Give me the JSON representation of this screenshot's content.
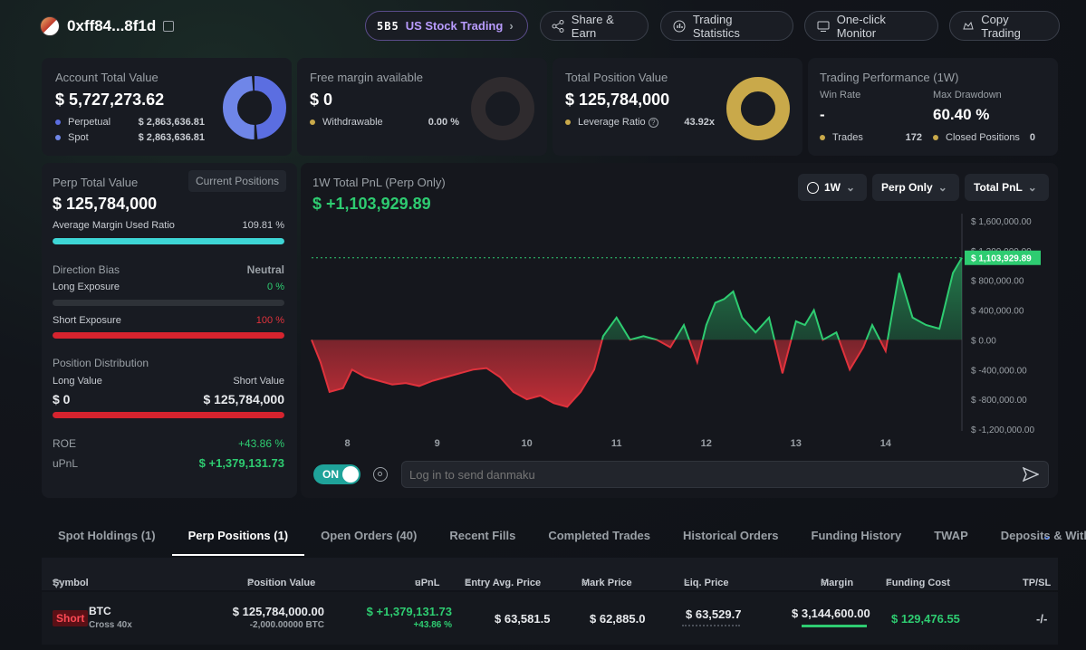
{
  "header": {
    "address": "0xff84...8f1d",
    "buttons": [
      "US Stock Trading",
      "Share & Earn",
      "Trading Statistics",
      "One-click Monitor",
      "Copy Trading"
    ],
    "us_logo": "5B5"
  },
  "account": {
    "label": "Account Total Value",
    "value": "$ 5,727,273.62",
    "perpetual_label": "Perpetual",
    "perpetual_value": "$ 2,863,636.81",
    "spot_label": "Spot",
    "spot_value": "$ 2,863,636.81",
    "colors": {
      "perpetual": "#5b6ee1",
      "spot": "#6f86e8"
    }
  },
  "free_margin": {
    "label": "Free margin available",
    "value": "$ 0",
    "withdrawable_label": "Withdrawable",
    "withdrawable_value": "0.00 %"
  },
  "total_position": {
    "label": "Total Position Value",
    "value": "$ 125,784,000",
    "leverage_label": "Leverage Ratio",
    "leverage_value": "43.92x"
  },
  "performance": {
    "label": "Trading Performance (1W)",
    "win_rate_label": "Win Rate",
    "win_rate_value": "-",
    "max_drawdown_label": "Max Drawdown",
    "max_drawdown_value": "60.40 %",
    "trades_label": "Trades",
    "trades_value": "172",
    "closed_label": "Closed Positions",
    "closed_value": "0"
  },
  "perp": {
    "total_label": "Perp Total Value",
    "current_positions": "Current Positions",
    "total_value": "$ 125,784,000",
    "margin_label": "Average Margin Used Ratio",
    "margin_value": "109.81 %",
    "margin_fill": 1.0,
    "bias_label": "Direction Bias",
    "bias_value": "Neutral",
    "long_exp_label": "Long Exposure",
    "long_exp_value": "0 %",
    "long_exp_fill": 0.0,
    "short_exp_label": "Short Exposure",
    "short_exp_value": "100 %",
    "short_exp_fill": 1.0,
    "dist_label": "Position Distribution",
    "long_value_label": "Long Value",
    "short_value_label": "Short Value",
    "long_value": "$ 0",
    "short_value": "$ 125,784,000",
    "roe_label": "ROE",
    "roe_value": "+43.86 %",
    "upnl_label": "uPnL",
    "upnl_value": "$ +1,379,131.73"
  },
  "chart_panel": {
    "title": "1W Total PnL (Perp Only)",
    "value": "$ +1,103,929.89",
    "ctl_period": "1W",
    "ctl_scope": "Perp Only",
    "ctl_metric": "Total PnL",
    "toggle_label": "ON",
    "danmaku_placeholder": "Log in to send danmaku",
    "current_tag": "$ 1,103,929.89"
  },
  "chart_data": {
    "type": "area",
    "title": "1W Total PnL (Perp Only)",
    "x_ticks": [
      "8",
      "9",
      "10",
      "11",
      "12",
      "13",
      "14"
    ],
    "y_ticks": [
      "$ 1,600,000.00",
      "$ 1,200,000.00",
      "$ 800,000.00",
      "$ 400,000.00",
      "$ 0.00",
      "$ -400,000.00",
      "$ -800,000.00",
      "$ -1,200,000.00"
    ],
    "ylim": [
      -1200000,
      1600000
    ],
    "x": [
      7.6,
      7.7,
      7.8,
      7.95,
      8.05,
      8.2,
      8.35,
      8.5,
      8.65,
      8.8,
      8.95,
      9.1,
      9.25,
      9.4,
      9.55,
      9.7,
      9.85,
      10.0,
      10.15,
      10.3,
      10.45,
      10.6,
      10.75,
      10.85,
      11.0,
      11.15,
      11.3,
      11.45,
      11.6,
      11.75,
      11.9,
      12.0,
      12.1,
      12.2,
      12.3,
      12.4,
      12.55,
      12.7,
      12.85,
      13.0,
      13.1,
      13.2,
      13.3,
      13.45,
      13.6,
      13.75,
      13.85,
      14.0,
      14.15,
      14.3,
      14.45,
      14.6,
      14.75,
      14.85
    ],
    "values": [
      0,
      -300000,
      -700000,
      -650000,
      -400000,
      -500000,
      -550000,
      -600000,
      -580000,
      -620000,
      -550000,
      -500000,
      -450000,
      -400000,
      -380000,
      -500000,
      -700000,
      -800000,
      -750000,
      -850000,
      -900000,
      -700000,
      -400000,
      50000,
      300000,
      0,
      50000,
      0,
      -100000,
      200000,
      -300000,
      200000,
      500000,
      550000,
      650000,
      300000,
      100000,
      300000,
      -450000,
      250000,
      200000,
      400000,
      0,
      100000,
      -400000,
      -100000,
      200000,
      -150000,
      900000,
      300000,
      200000,
      150000,
      900000,
      1103929.89
    ],
    "zero_color_above": "#2ecc71",
    "zero_color_below": "#e0323c"
  },
  "tabs": [
    "Spot Holdings (1)",
    "Perp Positions (1)",
    "Open Orders (40)",
    "Recent Fills",
    "Completed Trades",
    "Historical Orders",
    "Funding History",
    "TWAP",
    "Deposits & Withdra"
  ],
  "active_tab": 1,
  "table": {
    "headers": [
      "Symbol",
      "Position Value",
      "uPnL",
      "Entry Avg. Price",
      "Mark Price",
      "Liq. Price",
      "Margin",
      "Funding Cost",
      "TP/SL"
    ],
    "row": {
      "side": "Short",
      "symbol": "BTC",
      "mode": "Cross 40x",
      "position_value": "$ 125,784,000.00",
      "position_size": "-2,000.00000 BTC",
      "upnl": "$ +1,379,131.73",
      "upnl_pct": "+43.86 %",
      "entry": "$ 63,581.5",
      "mark": "$ 62,885.0",
      "liq": "$ 63,529.7",
      "margin": "$ 3,144,600.00",
      "funding": "$ 129,476.55",
      "tpsl": "-/-"
    }
  }
}
